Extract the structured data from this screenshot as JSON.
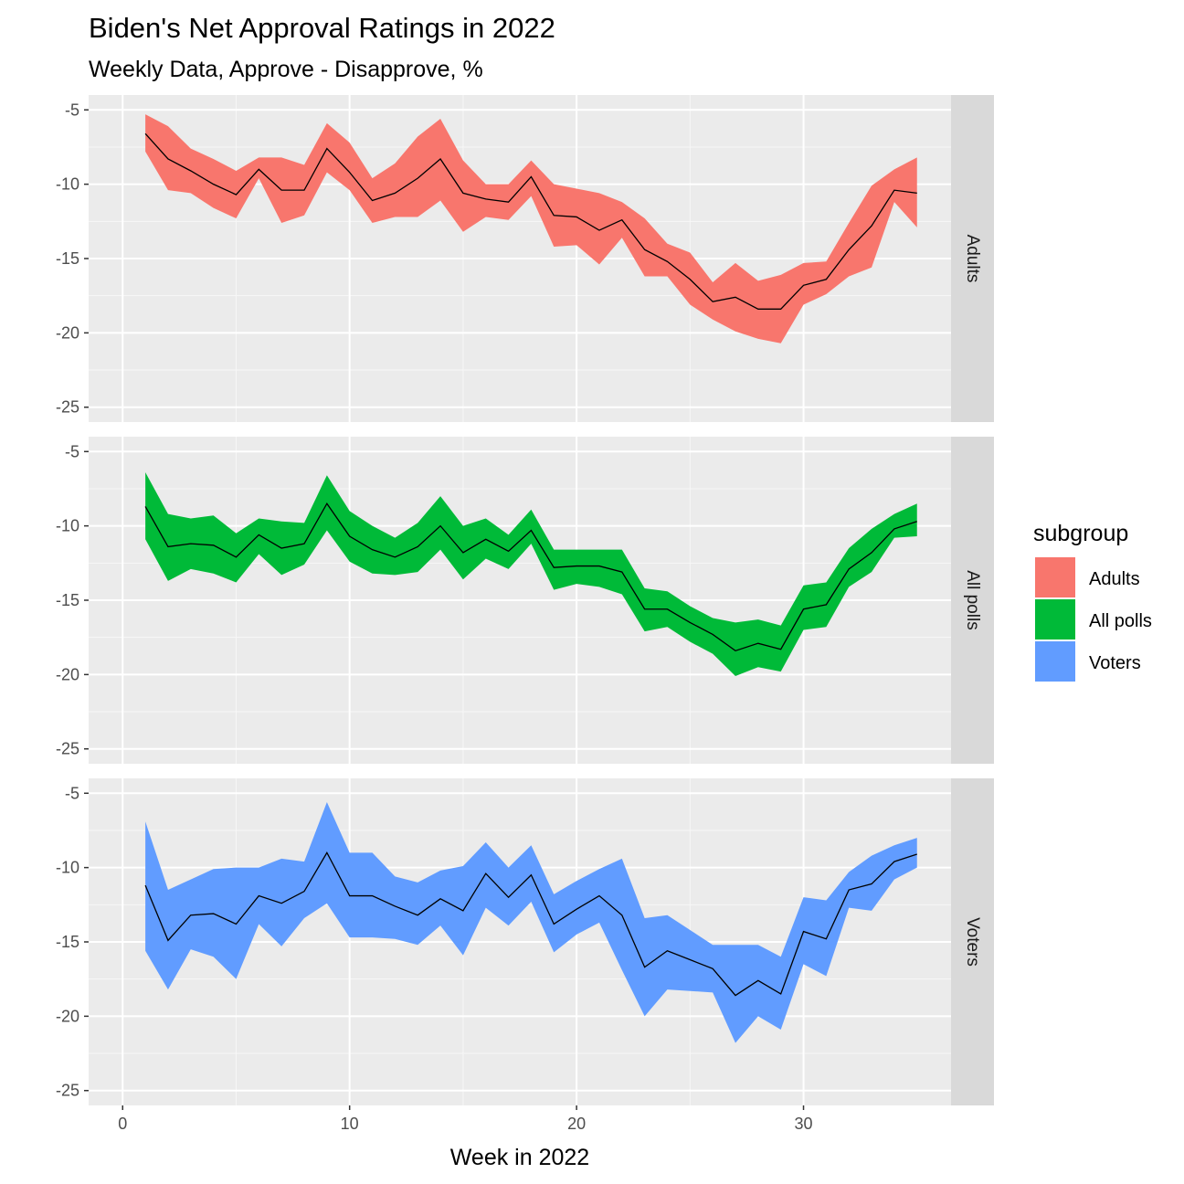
{
  "chart_data": {
    "type": "area",
    "title": "Biden's Net Approval Ratings in 2022",
    "subtitle": "Weekly Data, Approve - Disapprove, %",
    "xlabel": "Week in 2022",
    "ylabel": "",
    "xlim": [
      -1.5,
      36.5
    ],
    "ylim": [
      -26,
      -4
    ],
    "x_ticks": [
      0,
      10,
      20,
      30
    ],
    "y_ticks": [
      -5,
      -10,
      -15,
      -20,
      -25
    ],
    "grid": true,
    "legend": {
      "title": "subgroup",
      "position": "right",
      "entries": [
        {
          "label": "Adults",
          "color": "#F8766D"
        },
        {
          "label": "All polls",
          "color": "#00BA38"
        },
        {
          "label": "Voters",
          "color": "#619CFF"
        }
      ]
    },
    "x": [
      1,
      2,
      3,
      4,
      5,
      6,
      7,
      8,
      9,
      10,
      11,
      12,
      13,
      14,
      15,
      16,
      17,
      18,
      19,
      20,
      21,
      22,
      23,
      24,
      25,
      26,
      27,
      28,
      29,
      30,
      31,
      32,
      33,
      34,
      35
    ],
    "panels": [
      {
        "name": "Adults",
        "color": "#F8766D",
        "mean": [
          -6.6,
          -8.3,
          -9.1,
          -10.0,
          -10.7,
          -9.0,
          -10.4,
          -10.4,
          -7.6,
          -9.2,
          -11.1,
          -10.6,
          -9.6,
          -8.3,
          -10.6,
          -11.0,
          -11.2,
          -9.5,
          -12.1,
          -12.2,
          -13.1,
          -12.4,
          -14.4,
          -15.2,
          -16.4,
          -17.9,
          -17.6,
          -18.4,
          -18.4,
          -16.8,
          -16.4,
          -14.4,
          -12.8,
          -10.4,
          -10.6
        ],
        "upper": [
          -5.3,
          -6.1,
          -7.6,
          -8.3,
          -9.1,
          -8.2,
          -8.2,
          -8.7,
          -5.9,
          -7.2,
          -9.6,
          -8.6,
          -6.8,
          -5.6,
          -8.4,
          -10.0,
          -10.0,
          -8.4,
          -10.0,
          -10.3,
          -10.6,
          -11.2,
          -12.3,
          -14.0,
          -14.6,
          -16.6,
          -15.3,
          -16.5,
          -16.1,
          -15.3,
          -15.2,
          -12.6,
          -10.1,
          -9.0,
          -8.2
        ],
        "lower": [
          -7.8,
          -10.4,
          -10.6,
          -11.6,
          -12.3,
          -9.6,
          -12.6,
          -12.1,
          -9.2,
          -10.4,
          -12.6,
          -12.2,
          -12.2,
          -11.1,
          -13.2,
          -12.2,
          -12.4,
          -10.8,
          -14.2,
          -14.1,
          -15.4,
          -13.6,
          -16.2,
          -16.2,
          -18.1,
          -19.1,
          -19.9,
          -20.4,
          -20.7,
          -18.1,
          -17.4,
          -16.2,
          -15.6,
          -11.2,
          -12.9
        ]
      },
      {
        "name": "All polls",
        "color": "#00BA38",
        "mean": [
          -8.7,
          -11.4,
          -11.2,
          -11.3,
          -12.1,
          -10.6,
          -11.5,
          -11.2,
          -8.5,
          -10.7,
          -11.6,
          -12.1,
          -11.4,
          -10.0,
          -11.8,
          -10.9,
          -11.7,
          -10.3,
          -12.8,
          -12.7,
          -12.7,
          -13.1,
          -15.6,
          -15.6,
          -16.5,
          -17.3,
          -18.4,
          -17.9,
          -18.3,
          -15.6,
          -15.3,
          -12.9,
          -11.8,
          -10.2,
          -9.7
        ],
        "upper": [
          -6.4,
          -9.2,
          -9.5,
          -9.3,
          -10.5,
          -9.5,
          -9.7,
          -9.8,
          -6.6,
          -9.0,
          -10.0,
          -10.8,
          -9.8,
          -8.0,
          -10.0,
          -9.5,
          -10.6,
          -8.9,
          -11.6,
          -11.6,
          -11.6,
          -11.6,
          -14.2,
          -14.4,
          -15.4,
          -16.2,
          -16.5,
          -16.3,
          -16.7,
          -14.0,
          -13.8,
          -11.5,
          -10.2,
          -9.2,
          -8.5
        ],
        "lower": [
          -10.9,
          -13.7,
          -12.9,
          -13.2,
          -13.8,
          -11.9,
          -13.3,
          -12.6,
          -10.3,
          -12.4,
          -13.2,
          -13.3,
          -13.1,
          -11.6,
          -13.6,
          -12.2,
          -12.9,
          -11.2,
          -14.3,
          -13.9,
          -14.1,
          -14.6,
          -17.1,
          -16.8,
          -17.8,
          -18.6,
          -20.1,
          -19.5,
          -19.8,
          -17.0,
          -16.8,
          -14.1,
          -13.1,
          -10.8,
          -10.7
        ]
      },
      {
        "name": "Voters",
        "color": "#619CFF",
        "mean": [
          -11.2,
          -14.9,
          -13.2,
          -13.1,
          -13.8,
          -11.9,
          -12.4,
          -11.6,
          -9.0,
          -11.9,
          -11.9,
          -12.6,
          -13.2,
          -12.1,
          -12.9,
          -10.4,
          -12.0,
          -10.5,
          -13.8,
          -12.8,
          -11.9,
          -13.2,
          -16.7,
          -15.6,
          -16.2,
          -16.8,
          -18.6,
          -17.6,
          -18.5,
          -14.3,
          -14.8,
          -11.5,
          -11.1,
          -9.6,
          -9.1
        ],
        "upper": [
          -6.9,
          -11.5,
          -10.8,
          -10.1,
          -10.0,
          -10.0,
          -9.4,
          -9.6,
          -5.6,
          -9.0,
          -9.0,
          -10.6,
          -11.0,
          -10.2,
          -9.9,
          -8.3,
          -10.0,
          -8.5,
          -11.8,
          -10.9,
          -10.1,
          -9.4,
          -13.4,
          -13.2,
          -14.2,
          -15.2,
          -15.2,
          -15.2,
          -16.0,
          -12.0,
          -12.2,
          -10.3,
          -9.2,
          -8.5,
          -8.0
        ],
        "lower": [
          -15.6,
          -18.2,
          -15.5,
          -16.0,
          -17.5,
          -13.8,
          -15.3,
          -13.4,
          -12.4,
          -14.7,
          -14.7,
          -14.8,
          -15.2,
          -13.9,
          -15.9,
          -12.7,
          -13.9,
          -12.3,
          -15.7,
          -14.5,
          -13.7,
          -16.9,
          -20.0,
          -18.2,
          -18.3,
          -18.4,
          -21.8,
          -20.0,
          -20.9,
          -16.5,
          -17.3,
          -12.7,
          -12.9,
          -10.8,
          -10.0
        ]
      }
    ]
  }
}
